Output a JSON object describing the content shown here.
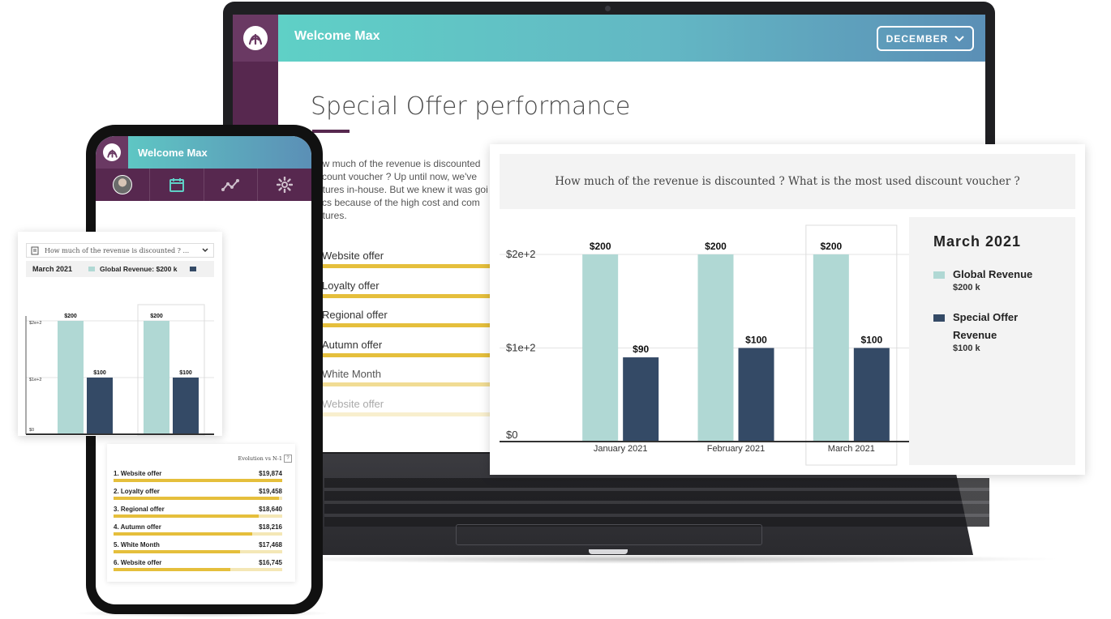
{
  "laptop": {
    "header": {
      "welcome": "Welcome Max",
      "month_selector": "DECEMBER"
    },
    "page_title": "Special Offer performance",
    "intro_lines": [
      "ow much of the revenue is discounted",
      "scount voucher ? Up until now, we've",
      "atures in-house. But we knew it was goi",
      "tics because of the high cost and com",
      "atures."
    ],
    "offers": [
      "Website offer",
      "Loyalty offer",
      "Regional offer",
      "Autumn offer",
      "White Month",
      "Website offer"
    ]
  },
  "main_chart_card": {
    "question": "How much of the revenue is discounted ? What is the most used discount voucher ?",
    "legend": {
      "title": "March 2021",
      "items": [
        {
          "name": "Global Revenue",
          "value": "$200 k",
          "color": "#b0d8d4"
        },
        {
          "name_line1": "Special Offer",
          "name_line2": "Revenue",
          "value": "$100 k",
          "color": "#344a66"
        }
      ]
    }
  },
  "chart_data": [
    {
      "type": "bar",
      "categories": [
        "January 2021",
        "February 2021",
        "March 2021"
      ],
      "series": [
        {
          "name": "Global Revenue",
          "values": [
            200,
            200,
            200
          ],
          "labels": [
            "$200",
            "$200",
            "$200"
          ],
          "color": "#b0d8d4"
        },
        {
          "name": "Special Offer Revenue",
          "values": [
            90,
            100,
            100
          ],
          "labels": [
            "$90",
            "$100",
            "$100"
          ],
          "color": "#344a66"
        }
      ],
      "y_ticks": [
        "$0",
        "$1e+2",
        "$2e+2"
      ],
      "ylim": [
        0,
        200
      ],
      "highlighted_category": "March 2021",
      "grid": true
    },
    {
      "type": "bar",
      "categories": [
        "February 2021",
        "March 2021"
      ],
      "series": [
        {
          "name": "Global Revenue",
          "values": [
            200,
            200
          ],
          "labels": [
            "$200",
            "$200"
          ],
          "color": "#b0d8d4"
        },
        {
          "name": "Special Offer Revenue",
          "values": [
            100,
            100
          ],
          "labels": [
            "$100",
            "$100"
          ],
          "color": "#344a66"
        }
      ],
      "y_ticks": [
        "$0",
        "$1e+2",
        "$2e+2"
      ],
      "ylim": [
        0,
        200
      ],
      "highlighted_category": "March 2021",
      "grid": true
    }
  ],
  "phone": {
    "welcome": "Welcome Max",
    "nav_icons": [
      "avatar",
      "calendar-icon",
      "trend-icon",
      "gear-icon"
    ],
    "mini_chart": {
      "question": "How much of the revenue is discounted ? ...",
      "month": "March 2021",
      "legend_text": "Global Revenue: $200 k"
    },
    "list": {
      "header": "Evolution vs N-1",
      "items": [
        {
          "label": "1. Website offer",
          "value": "$19,874",
          "fill": 1.0
        },
        {
          "label": "2. Loyalty offer",
          "value": "$19,458",
          "fill": 0.98
        },
        {
          "label": "3. Regional offer",
          "value": "$18,640",
          "fill": 0.86
        },
        {
          "label": "4. Autumn offer",
          "value": "$18,216",
          "fill": 0.82
        },
        {
          "label": "5. White Month",
          "value": "$17,468",
          "fill": 0.75
        },
        {
          "label": "6. Website offer",
          "value": "$16,745",
          "fill": 0.69
        }
      ]
    }
  }
}
